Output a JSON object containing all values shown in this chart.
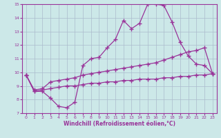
{
  "xlabel": "Windchill (Refroidissement éolien,°C)",
  "xlim": [
    -0.5,
    23.5
  ],
  "ylim": [
    7,
    15
  ],
  "yticks": [
    7,
    8,
    9,
    10,
    11,
    12,
    13,
    14,
    15
  ],
  "xticks": [
    0,
    1,
    2,
    3,
    4,
    5,
    6,
    7,
    8,
    9,
    10,
    11,
    12,
    13,
    14,
    15,
    16,
    17,
    18,
    19,
    20,
    21,
    22,
    23
  ],
  "bg_color": "#cce8e8",
  "line_color": "#993399",
  "grid_color": "#aabbcc",
  "lines": [
    {
      "x": [
        0,
        1,
        2,
        3,
        4,
        5,
        6,
        7,
        8,
        9,
        10,
        11,
        12,
        13,
        14,
        15,
        16,
        17,
        18,
        19,
        20,
        21,
        22,
        23
      ],
      "y": [
        9.8,
        8.6,
        8.6,
        8.1,
        7.5,
        7.4,
        7.8,
        10.5,
        11.0,
        11.1,
        11.8,
        12.4,
        13.8,
        13.2,
        13.6,
        15.0,
        15.0,
        14.9,
        13.7,
        12.2,
        11.2,
        10.6,
        10.5,
        9.9
      ]
    },
    {
      "x": [
        0,
        1,
        2,
        3,
        4,
        5,
        6,
        7,
        8,
        9,
        10,
        11,
        12,
        13,
        14,
        15,
        16,
        17,
        18,
        19,
        20,
        21,
        22,
        23
      ],
      "y": [
        9.8,
        8.7,
        8.8,
        9.3,
        9.4,
        9.5,
        9.6,
        9.8,
        9.9,
        10.0,
        10.1,
        10.2,
        10.3,
        10.4,
        10.5,
        10.6,
        10.7,
        10.9,
        11.1,
        11.3,
        11.5,
        11.6,
        11.8,
        9.9
      ]
    },
    {
      "x": [
        0,
        1,
        2,
        3,
        4,
        5,
        6,
        7,
        8,
        9,
        10,
        11,
        12,
        13,
        14,
        15,
        16,
        17,
        18,
        19,
        20,
        21,
        22,
        23
      ],
      "y": [
        9.8,
        8.6,
        8.7,
        8.8,
        8.9,
        9.0,
        9.0,
        9.1,
        9.2,
        9.2,
        9.3,
        9.3,
        9.4,
        9.4,
        9.5,
        9.5,
        9.5,
        9.6,
        9.6,
        9.7,
        9.7,
        9.8,
        9.8,
        9.9
      ]
    }
  ]
}
